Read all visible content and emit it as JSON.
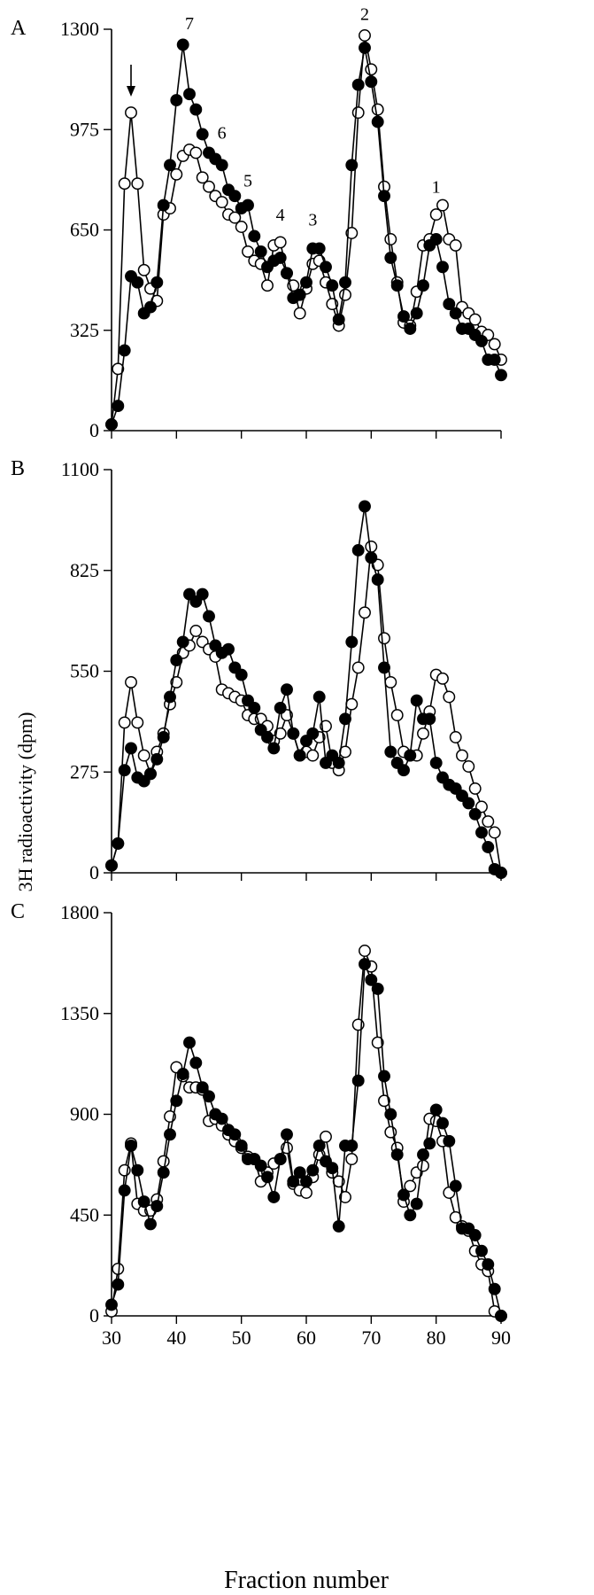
{
  "chart_data": [
    {
      "type": "line",
      "panel_label": "A",
      "xlim": [
        30,
        90
      ],
      "ylim": [
        0,
        1300
      ],
      "yticks": [
        "0",
        "325",
        "650",
        "975",
        "1300"
      ],
      "grid": false,
      "peak_labels": [
        {
          "text": "7",
          "x": 42,
          "y": 1300
        },
        {
          "text": "6",
          "x": 47,
          "y": 945
        },
        {
          "text": "5",
          "x": 51,
          "y": 790
        },
        {
          "text": "4",
          "x": 56,
          "y": 680
        },
        {
          "text": "3",
          "x": 61,
          "y": 665
        },
        {
          "text": "2",
          "x": 69,
          "y": 1330
        },
        {
          "text": "1",
          "x": 80,
          "y": 770
        }
      ],
      "arrow_x": 33,
      "series": [
        {
          "marker": "filled",
          "x": [
            30,
            31,
            32,
            33,
            34,
            35,
            36,
            37,
            38,
            39,
            40,
            41,
            42,
            43,
            44,
            45,
            46,
            47,
            48,
            49,
            50,
            51,
            52,
            53,
            54,
            55,
            56,
            57,
            58,
            59,
            60,
            61,
            62,
            63,
            64,
            65,
            66,
            67,
            68,
            69,
            70,
            71,
            72,
            73,
            74,
            75,
            76,
            77,
            78,
            79,
            80,
            81,
            82,
            83,
            84,
            85,
            86,
            87,
            88,
            89,
            90
          ],
          "y": [
            20,
            80,
            260,
            500,
            480,
            380,
            400,
            480,
            730,
            860,
            1070,
            1250,
            1090,
            1040,
            960,
            900,
            880,
            860,
            780,
            760,
            720,
            730,
            630,
            580,
            530,
            550,
            560,
            510,
            430,
            440,
            480,
            590,
            590,
            530,
            470,
            360,
            480,
            860,
            1120,
            1240,
            1130,
            1000,
            760,
            560,
            470,
            370,
            330,
            380,
            470,
            600,
            620,
            530,
            410,
            380,
            330,
            330,
            310,
            290,
            230,
            230,
            180
          ]
        },
        {
          "marker": "open",
          "x": [
            30,
            31,
            32,
            33,
            34,
            35,
            36,
            37,
            38,
            39,
            40,
            41,
            42,
            43,
            44,
            45,
            46,
            47,
            48,
            49,
            50,
            51,
            52,
            53,
            54,
            55,
            56,
            57,
            58,
            59,
            60,
            61,
            62,
            63,
            64,
            65,
            66,
            67,
            68,
            69,
            70,
            71,
            72,
            73,
            74,
            75,
            76,
            77,
            78,
            79,
            80,
            81,
            82,
            83,
            84,
            85,
            86,
            87,
            88,
            89,
            90
          ],
          "y": [
            20,
            200,
            800,
            1030,
            800,
            520,
            460,
            420,
            700,
            720,
            830,
            890,
            910,
            900,
            820,
            790,
            760,
            740,
            700,
            690,
            660,
            580,
            550,
            540,
            470,
            600,
            610,
            510,
            470,
            380,
            460,
            540,
            550,
            480,
            410,
            340,
            440,
            640,
            1030,
            1280,
            1170,
            1040,
            790,
            620,
            480,
            350,
            340,
            450,
            600,
            620,
            700,
            730,
            620,
            600,
            400,
            380,
            360,
            320,
            310,
            280,
            230
          ]
        }
      ]
    },
    {
      "type": "line",
      "panel_label": "B",
      "xlim": [
        30,
        90
      ],
      "ylim": [
        0,
        1100
      ],
      "yticks": [
        "0",
        "275",
        "550",
        "825",
        "1100"
      ],
      "grid": false,
      "series": [
        {
          "marker": "filled",
          "x": [
            30,
            31,
            32,
            33,
            34,
            35,
            36,
            37,
            38,
            39,
            40,
            41,
            42,
            43,
            44,
            45,
            46,
            47,
            48,
            49,
            50,
            51,
            52,
            53,
            54,
            55,
            56,
            57,
            58,
            59,
            60,
            61,
            62,
            63,
            64,
            65,
            66,
            67,
            68,
            69,
            70,
            71,
            72,
            73,
            74,
            75,
            76,
            77,
            78,
            79,
            80,
            81,
            82,
            83,
            84,
            85,
            86,
            87,
            88,
            89,
            90
          ],
          "y": [
            20,
            80,
            280,
            340,
            260,
            250,
            270,
            310,
            370,
            480,
            580,
            630,
            760,
            740,
            760,
            700,
            620,
            600,
            610,
            560,
            540,
            470,
            450,
            390,
            370,
            340,
            450,
            500,
            380,
            320,
            360,
            380,
            480,
            300,
            320,
            300,
            420,
            630,
            880,
            1000,
            860,
            800,
            560,
            330,
            300,
            280,
            320,
            470,
            420,
            420,
            300,
            260,
            240,
            230,
            210,
            190,
            160,
            110,
            70,
            10,
            0
          ]
        },
        {
          "marker": "open",
          "x": [
            30,
            31,
            32,
            33,
            34,
            35,
            36,
            37,
            38,
            39,
            40,
            41,
            42,
            43,
            44,
            45,
            46,
            47,
            48,
            49,
            50,
            51,
            52,
            53,
            54,
            55,
            56,
            57,
            58,
            59,
            60,
            61,
            62,
            63,
            64,
            65,
            66,
            67,
            68,
            69,
            70,
            71,
            72,
            73,
            74,
            75,
            76,
            77,
            78,
            79,
            80,
            81,
            82,
            83,
            84,
            85,
            86,
            87,
            88,
            89,
            90
          ],
          "y": [
            20,
            80,
            410,
            520,
            410,
            320,
            270,
            330,
            380,
            460,
            520,
            600,
            620,
            660,
            630,
            610,
            590,
            500,
            490,
            480,
            470,
            430,
            420,
            420,
            400,
            360,
            380,
            430,
            380,
            320,
            330,
            320,
            370,
            400,
            300,
            280,
            330,
            460,
            560,
            710,
            890,
            840,
            640,
            520,
            430,
            330,
            320,
            320,
            380,
            440,
            540,
            530,
            480,
            370,
            320,
            290,
            230,
            180,
            140,
            110,
            0
          ]
        }
      ]
    },
    {
      "type": "line",
      "panel_label": "C",
      "xlim": [
        30,
        90
      ],
      "ylim": [
        0,
        1800
      ],
      "yticks": [
        "0",
        "450",
        "900",
        "1350",
        "1800"
      ],
      "grid": false,
      "series": [
        {
          "marker": "filled",
          "x": [
            30,
            31,
            32,
            33,
            34,
            35,
            36,
            37,
            38,
            39,
            40,
            41,
            42,
            43,
            44,
            45,
            46,
            47,
            48,
            49,
            50,
            51,
            52,
            53,
            54,
            55,
            56,
            57,
            58,
            59,
            60,
            61,
            62,
            63,
            64,
            65,
            66,
            67,
            68,
            69,
            70,
            71,
            72,
            73,
            74,
            75,
            76,
            77,
            78,
            79,
            80,
            81,
            82,
            83,
            84,
            85,
            86,
            87,
            88,
            89,
            90
          ],
          "y": [
            50,
            140,
            560,
            760,
            650,
            510,
            410,
            490,
            640,
            810,
            960,
            1080,
            1220,
            1130,
            1020,
            980,
            900,
            880,
            830,
            810,
            760,
            700,
            700,
            670,
            620,
            530,
            700,
            810,
            600,
            640,
            600,
            650,
            760,
            690,
            660,
            400,
            760,
            760,
            1050,
            1570,
            1500,
            1460,
            1070,
            900,
            720,
            540,
            450,
            500,
            720,
            770,
            920,
            860,
            780,
            580,
            390,
            390,
            360,
            290,
            230,
            120,
            0
          ]
        },
        {
          "marker": "open",
          "x": [
            30,
            31,
            32,
            33,
            34,
            35,
            36,
            37,
            38,
            39,
            40,
            41,
            42,
            43,
            44,
            45,
            46,
            47,
            48,
            49,
            50,
            51,
            52,
            53,
            54,
            55,
            56,
            57,
            58,
            59,
            60,
            61,
            62,
            63,
            64,
            65,
            66,
            67,
            68,
            69,
            70,
            71,
            72,
            73,
            74,
            75,
            76,
            77,
            78,
            79,
            80,
            81,
            82,
            83,
            84,
            85,
            86,
            87,
            88,
            89,
            90
          ],
          "y": [
            20,
            210,
            650,
            770,
            500,
            470,
            470,
            520,
            690,
            890,
            1110,
            1070,
            1020,
            1020,
            1010,
            870,
            880,
            850,
            810,
            780,
            750,
            710,
            700,
            600,
            640,
            680,
            700,
            750,
            590,
            560,
            550,
            620,
            720,
            800,
            640,
            600,
            530,
            700,
            1300,
            1630,
            1560,
            1220,
            960,
            820,
            750,
            510,
            580,
            640,
            670,
            880,
            870,
            780,
            550,
            440,
            400,
            380,
            290,
            230,
            200,
            20,
            0
          ]
        }
      ]
    }
  ],
  "axes": {
    "ylabel": "3H radioactivity (dpm)",
    "xlabel": "Fraction number",
    "xticks": [
      "30",
      "40",
      "50",
      "60",
      "70",
      "80",
      "90"
    ]
  }
}
